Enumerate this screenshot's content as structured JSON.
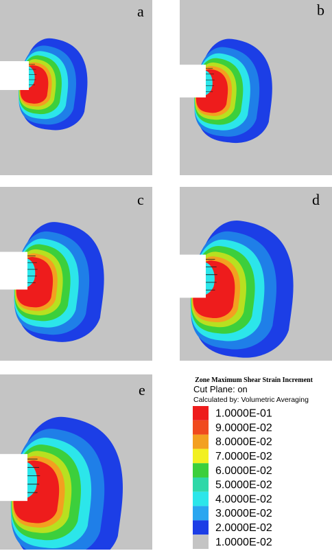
{
  "panels": [
    {
      "label": "a"
    },
    {
      "label": "b"
    },
    {
      "label": "c"
    },
    {
      "label": "d"
    },
    {
      "label": "e"
    }
  ],
  "legend": {
    "title": "Zone Maximum Shear Strain Increment",
    "cut_plane": "Cut Plane: on",
    "calculated_by": "Calculated by: Volumetric Averaging",
    "entries": [
      {
        "label": "1.0000E-01",
        "color": "#ee1c1c"
      },
      {
        "label": "9.0000E-02",
        "color": "#f04a1e"
      },
      {
        "label": "8.0000E-02",
        "color": "#f3a020"
      },
      {
        "label": "7.0000E-02",
        "color": "#f2f020"
      },
      {
        "label": "6.0000E-02",
        "color": "#3ccf3c"
      },
      {
        "label": "5.0000E-02",
        "color": "#2ed8a8"
      },
      {
        "label": "4.0000E-02",
        "color": "#2ce6ea"
      },
      {
        "label": "3.0000E-02",
        "color": "#2aa6f0"
      },
      {
        "label": "2.0000E-02",
        "color": "#1c3ee6"
      },
      {
        "label": "1.0000E-02",
        "color": "#c4c4c4"
      }
    ]
  }
}
